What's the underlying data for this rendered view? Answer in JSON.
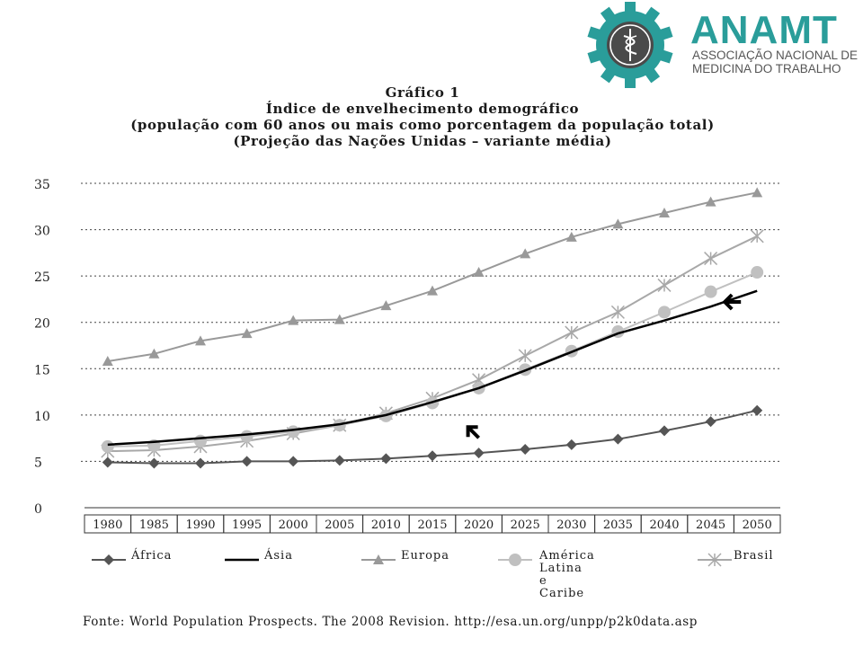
{
  "logo": {
    "acronym": "ANAMT",
    "line1": "ASSOCIAÇÃO NACIONAL DE",
    "line2": "MEDICINA DO TRABALHO",
    "colors": {
      "gear": "#2a9d9a",
      "inner": "#4a4a4a",
      "text": "#2a9d9a",
      "subtext": "#555555"
    }
  },
  "chart_data": {
    "type": "line",
    "title": "Gráfico 1",
    "subtitle_lines": [
      "Índice de envelhecimento demográfico",
      "(população com 60 anos ou mais como porcentagem da população total)",
      "(Projeção das Nações Unidas – variante média)"
    ],
    "xlabel": "",
    "ylabel": "",
    "categories": [
      "1980",
      "1985",
      "1990",
      "1995",
      "2000",
      "2005",
      "2010",
      "2015",
      "2020",
      "2025",
      "2030",
      "2035",
      "2040",
      "2045",
      "2050"
    ],
    "ylim": [
      0,
      35
    ],
    "yticks": [
      0,
      5,
      10,
      15,
      20,
      25,
      30,
      35
    ],
    "grid": "horizontal dotted",
    "legend_placement": "bottom",
    "series": [
      {
        "name": "África",
        "color": "#555555",
        "marker": "diamond",
        "values": [
          4.9,
          4.8,
          4.8,
          5.0,
          5.0,
          5.1,
          5.3,
          5.6,
          5.9,
          6.3,
          6.8,
          7.4,
          8.3,
          9.3,
          10.5
        ]
      },
      {
        "name": "Ásia",
        "color": "#000000",
        "marker": "none",
        "values": [
          6.8,
          7.1,
          7.5,
          7.9,
          8.4,
          9.0,
          10.0,
          11.4,
          12.9,
          14.8,
          16.8,
          18.8,
          20.2,
          21.7,
          23.4
        ]
      },
      {
        "name": "Europa",
        "color": "#999999",
        "marker": "triangle",
        "values": [
          15.8,
          16.6,
          18.0,
          18.8,
          20.2,
          20.3,
          21.8,
          23.4,
          25.4,
          27.4,
          29.2,
          30.6,
          31.8,
          33.0,
          34.0
        ]
      },
      {
        "name": "América Latina\ne Caribe",
        "color": "#c0c0c0",
        "marker": "circle",
        "values": [
          6.6,
          6.7,
          7.2,
          7.7,
          8.2,
          8.9,
          9.9,
          11.3,
          12.9,
          14.9,
          16.9,
          19.0,
          21.1,
          23.3,
          25.4
        ]
      },
      {
        "name": "Brasil",
        "color": "#a8a8a8",
        "marker": "star",
        "values": [
          6.1,
          6.2,
          6.6,
          7.2,
          8.0,
          8.9,
          10.2,
          11.8,
          13.8,
          16.4,
          18.9,
          21.1,
          24.0,
          26.9,
          29.3
        ]
      }
    ],
    "annotations": [
      {
        "type": "arrow",
        "direction": "left",
        "near": "2050 Ásia"
      },
      {
        "type": "arrow",
        "direction": "up-left",
        "near": "2020 Ásia"
      }
    ]
  },
  "source": "Fonte: World Population Prospects. The 2008 Revision. http://esa.un.org/unpp/p2k0data.asp"
}
